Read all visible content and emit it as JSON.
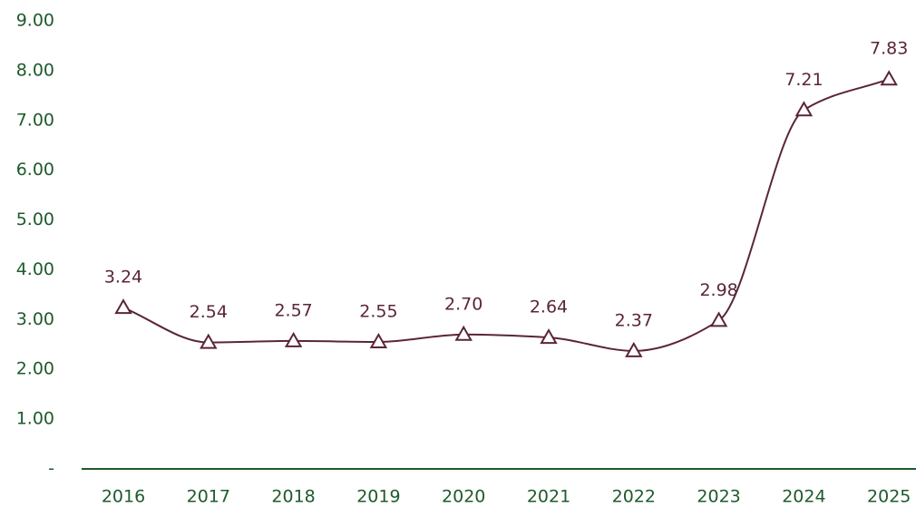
{
  "chart_data": {
    "type": "line",
    "categories": [
      "2016",
      "2017",
      "2018",
      "2019",
      "2020",
      "2021",
      "2022",
      "2023",
      "2024",
      "2025"
    ],
    "series": [
      {
        "color": "#5b2538",
        "values": [
          3.24,
          2.54,
          2.57,
          2.55,
          2.7,
          2.64,
          2.37,
          2.98,
          7.21,
          7.83
        ],
        "value_labels": [
          "3.24",
          "2.54",
          "2.57",
          "2.55",
          "2.70",
          "2.64",
          "2.37",
          "2.98",
          "7.21",
          "7.83"
        ]
      }
    ],
    "ylim": [
      0,
      9
    ],
    "yticks": [
      {
        "value": 0,
        "label": "-"
      },
      {
        "value": 1,
        "label": "1.00"
      },
      {
        "value": 2,
        "label": "2.00"
      },
      {
        "value": 3,
        "label": "3.00"
      },
      {
        "value": 4,
        "label": "4.00"
      },
      {
        "value": 5,
        "label": "5.00"
      },
      {
        "value": 6,
        "label": "6.00"
      },
      {
        "value": 7,
        "label": "7.00"
      },
      {
        "value": 8,
        "label": "8.00"
      },
      {
        "value": 9,
        "label": "9.00"
      }
    ],
    "axis_color": "#1e5a2c",
    "grid": false
  }
}
